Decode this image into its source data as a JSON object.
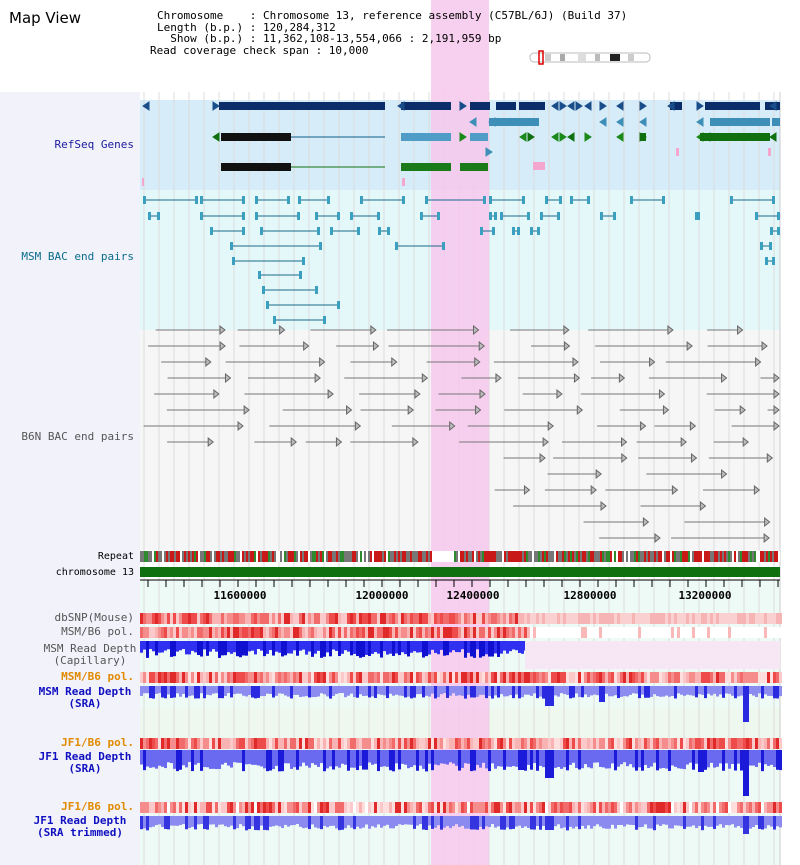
{
  "page": {
    "title": "Map View"
  },
  "info": {
    "chromosome": "Chromosome    : Chromosome 13, reference assembly (C57BL/6J) (Build 37)",
    "length": "Length (b.p.) : 120,284,312",
    "show": "  Show (b.p.) : 11,362,108-13,554,066 : 2,191,959 bp",
    "coverage": "Read coverage check span : 10,000"
  },
  "tracks": {
    "refseq": "RefSeq Genes",
    "msm_bac": "MSM BAC end pairs",
    "b6n_bac": "B6N BAC end pairs",
    "repeat": "Repeat",
    "chrom": "chromosome 13",
    "dbsnp": "dbSNP(Mouse)",
    "msm_b6_pol": "MSM/B6 pol.",
    "msm_depth_cap": "MSM Read Depth\n(Capillary)",
    "msm_b6_pol2": "MSM/B6 pol.",
    "msm_depth_sra": "MSM Read Depth\n(SRA)",
    "jf1_b6_pol": "JF1/B6 pol.",
    "jf1_depth_sra": "JF1 Read Depth\n(SRA)",
    "jf1_b6_pol2": "JF1/B6 pol.",
    "jf1_depth_trim": "JF1 Read Depth\n(SRA trimmed)"
  },
  "axis": {
    "ticks": [
      "11600000",
      "12000000",
      "12400000",
      "12800000",
      "13200000"
    ]
  },
  "colors": {
    "refseq_label": "#1a1a9c",
    "msm_label": "#0a6c8a",
    "b6n_label": "#555555",
    "pol_label": "#e08a00",
    "depth_label": "#1010c0",
    "highlight": "#f7c8ec",
    "refseq_bg": "#d6ecf8",
    "msm_bg": "#e4f8fa",
    "left_bg": "#f2f2fb"
  }
}
